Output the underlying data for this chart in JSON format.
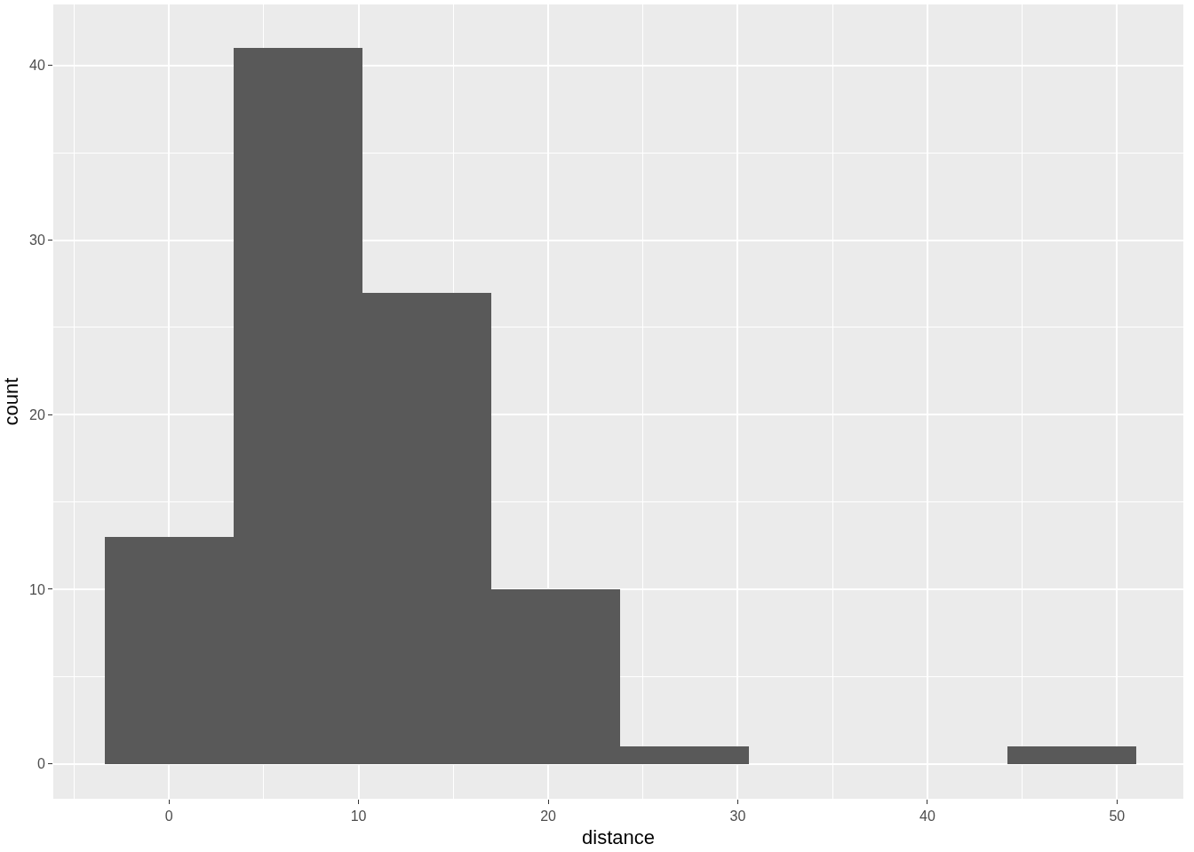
{
  "chart_data": {
    "type": "histogram",
    "xlabel": "distance",
    "ylabel": "count",
    "bins": [
      -3.4,
      3.4,
      10.2,
      17,
      23.8,
      30.6,
      37.4,
      44.2,
      51
    ],
    "values": [
      13,
      41,
      27,
      10,
      1,
      0,
      0,
      1
    ],
    "color": "#595959",
    "xlim": [
      -6.1,
      53.5
    ],
    "ylim": [
      -2.0,
      43.5
    ],
    "xticks": [
      0,
      10,
      20,
      30,
      40,
      50
    ],
    "yticks": [
      0,
      10,
      20,
      30,
      40
    ],
    "grid": true
  }
}
